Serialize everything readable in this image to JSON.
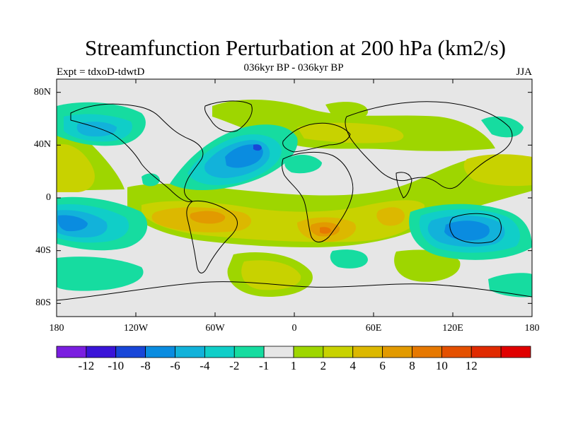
{
  "title": "Streamfunction Perturbation at 200 hPa (km2/s)",
  "subtitle": "036kyr BP - 036kyr BP",
  "experiment_label": "Expt = tdxoD-tdwtD",
  "season_label": "JJA",
  "lat_ticks": [
    {
      "label": "80N",
      "value": 80
    },
    {
      "label": "40N",
      "value": 40
    },
    {
      "label": "0",
      "value": 0
    },
    {
      "label": "40S",
      "value": -40
    },
    {
      "label": "80S",
      "value": -80
    }
  ],
  "lon_ticks": [
    {
      "label": "180",
      "value": -180
    },
    {
      "label": "120W",
      "value": -120
    },
    {
      "label": "60W",
      "value": -60
    },
    {
      "label": "0",
      "value": 0
    },
    {
      "label": "60E",
      "value": 60
    },
    {
      "label": "120E",
      "value": 120
    },
    {
      "label": "180",
      "value": 180
    }
  ],
  "colorbar": {
    "colors": [
      "#7a1ee0",
      "#3a14d8",
      "#1846d8",
      "#0a8ce0",
      "#12b2da",
      "#10cec8",
      "#16dca0",
      "#e6e6e6",
      "#9ed600",
      "#c8d200",
      "#dcb800",
      "#e29a00",
      "#e67800",
      "#e45000",
      "#e02a00",
      "#e00000"
    ],
    "labels": [
      "-12",
      "-10",
      "-8",
      "-6",
      "-4",
      "-2",
      "-1",
      "1",
      "2",
      "4",
      "6",
      "8",
      "10",
      "12"
    ]
  },
  "anomalies": [
    {
      "region": "North Atlantic",
      "lon": -40,
      "lat": 38,
      "level": "-8"
    },
    {
      "region": "Northeast Pacific",
      "lon": -140,
      "lat": 45,
      "level": "-4"
    },
    {
      "region": "Australia",
      "lon": 140,
      "lat": -25,
      "level": "-6"
    },
    {
      "region": "South Pacific",
      "lon": -170,
      "lat": -15,
      "level": "-6"
    },
    {
      "region": "Southern Africa",
      "lon": 30,
      "lat": -25,
      "level": "8"
    },
    {
      "region": "South America / South Atlantic",
      "lon": -60,
      "lat": -15,
      "level": "6"
    },
    {
      "region": "Indian Ocean",
      "lon": 80,
      "lat": -12,
      "level": "6"
    },
    {
      "region": "North Pacific",
      "lon": -170,
      "lat": 30,
      "level": "4"
    },
    {
      "region": "Eurasia",
      "lon": 50,
      "lat": 65,
      "level": "4"
    },
    {
      "region": "Southern Ocean",
      "lon": -20,
      "lat": -55,
      "level": "4"
    },
    {
      "region": "Southern Ocean (Indian)",
      "lon": 80,
      "lat": -55,
      "level": "4"
    }
  ]
}
